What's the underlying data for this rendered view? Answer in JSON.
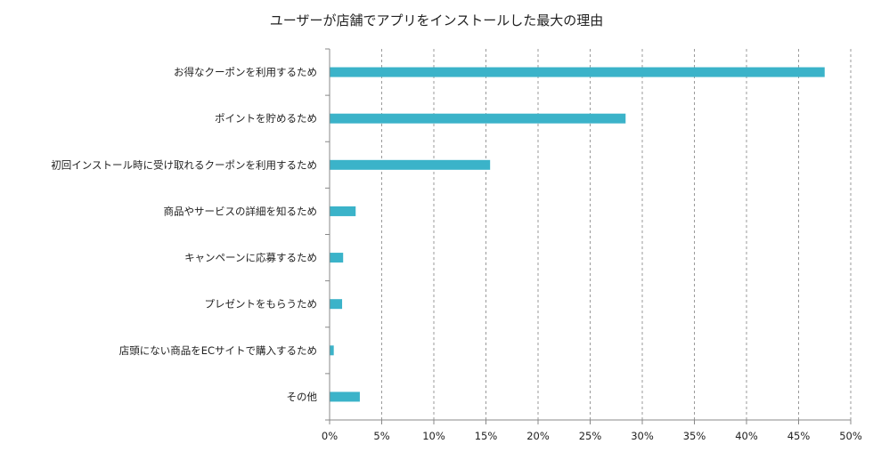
{
  "chart_data": {
    "type": "bar",
    "orientation": "horizontal",
    "title": "ユーザーが店舗でアプリをインストールした最大の理由",
    "categories": [
      "お得なクーポンを利用するため",
      "ポイントを貯めるため",
      "初回インストール時に受け取れるクーポンを利用するため",
      "商品やサービスの詳細を知るため",
      "キャンペーンに応募するため",
      "プレゼントをもらうため",
      "店頭にない商品をECサイトで購入するため",
      "その他"
    ],
    "values": [
      47.5,
      28.4,
      15.4,
      2.5,
      1.3,
      1.2,
      0.4,
      2.9
    ],
    "xlim": [
      0,
      50
    ],
    "xticks": [
      "0%",
      "5%",
      "10%",
      "15%",
      "20%",
      "25%",
      "30%",
      "35%",
      "40%",
      "45%",
      "50%"
    ],
    "grid": "vertical dashed",
    "bar_color": "#3bb3c9"
  }
}
